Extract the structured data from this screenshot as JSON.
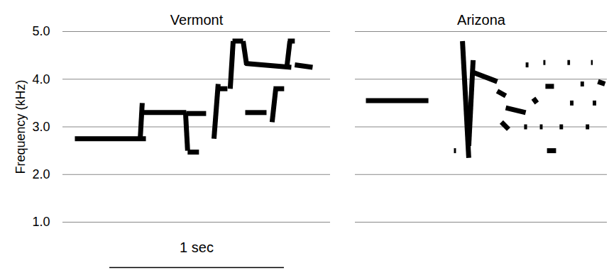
{
  "chart_data": [
    {
      "type": "spectrogram",
      "title": "Vermont",
      "y_label": "Frequency (kHz)",
      "xlim": [
        0,
        1.533
      ],
      "ylim": [
        1,
        5
      ],
      "yticks": [
        1,
        2,
        3,
        4,
        5
      ],
      "grid": true,
      "tick_labels": "y",
      "color": "#000000",
      "scale_bar": {
        "label": "1 sec",
        "length": 1
      },
      "segments": [
        {
          "x": [
            0.069,
            0.476
          ],
          "y": [
            2.75,
            2.75
          ]
        },
        {
          "x": [
            0.443,
            0.455
          ],
          "y": [
            2.72,
            3.5
          ]
        },
        {
          "x": [
            0.455,
            0.707
          ],
          "y": [
            3.3,
            3.3
          ]
        },
        {
          "x": [
            0.707,
            0.821
          ],
          "y": [
            3.28,
            3.28
          ]
        },
        {
          "x": [
            0.703,
            0.715
          ],
          "y": [
            3.3,
            2.5
          ]
        },
        {
          "x": [
            0.715,
            0.78
          ],
          "y": [
            2.47,
            2.47
          ]
        },
        {
          "x": [
            0.866,
            0.89
          ],
          "y": [
            2.75,
            3.9
          ]
        },
        {
          "x": [
            0.882,
            0.943
          ],
          "y": [
            3.8,
            3.8
          ]
        },
        {
          "x": [
            0.959,
            0.976
          ],
          "y": [
            3.8,
            4.8
          ]
        },
        {
          "x": [
            0.972,
            1.033
          ],
          "y": [
            4.8,
            4.8
          ]
        },
        {
          "x": [
            1.033,
            1.053
          ],
          "y": [
            4.8,
            4.3
          ]
        },
        {
          "x": [
            1.045,
            1.309
          ],
          "y": [
            4.33,
            4.25
          ]
        },
        {
          "x": [
            1.045,
            1.167
          ],
          "y": [
            3.3,
            3.3
          ]
        },
        {
          "x": [
            1.199,
            1.22
          ],
          "y": [
            3.1,
            3.8
          ]
        },
        {
          "x": [
            1.207,
            1.268
          ],
          "y": [
            3.8,
            3.8
          ]
        },
        {
          "x": [
            1.285,
            1.301
          ],
          "y": [
            4.3,
            4.8
          ]
        },
        {
          "x": [
            1.289,
            1.329
          ],
          "y": [
            4.8,
            4.8
          ]
        },
        {
          "x": [
            1.329,
            1.431
          ],
          "y": [
            4.3,
            4.25
          ]
        }
      ]
    },
    {
      "type": "spectrogram",
      "title": "Arizona",
      "xlim": [
        0,
        1.443
      ],
      "ylim": [
        1,
        5
      ],
      "yticks": [
        1,
        2,
        3,
        4,
        5
      ],
      "grid": true,
      "tick_labels": false,
      "color": "#000000",
      "segments": [
        {
          "x": [
            0.061,
            0.419
          ],
          "y": [
            3.55,
            3.55
          ]
        },
        {
          "x": [
            0.565,
            0.577
          ],
          "y": [
            2.5,
            2.5
          ]
        },
        {
          "x": [
            0.614,
            0.65
          ],
          "y": [
            4.8,
            2.35
          ]
        },
        {
          "x": [
            0.65,
            0.675
          ],
          "y": [
            2.6,
            4.4
          ]
        },
        {
          "x": [
            0.671,
            0.813
          ],
          "y": [
            4.15,
            3.95
          ]
        },
        {
          "x": [
            0.813,
            0.862
          ],
          "y": [
            3.75,
            3.65
          ]
        },
        {
          "x": [
            0.837,
            0.878
          ],
          "y": [
            3.1,
            2.95
          ]
        },
        {
          "x": [
            0.862,
            0.976
          ],
          "y": [
            3.4,
            3.3
          ]
        },
        {
          "x": [
            0.967,
            0.984
          ],
          "y": [
            3.0,
            3.0
          ]
        },
        {
          "x": [
            0.976,
            0.992
          ],
          "y": [
            4.3,
            4.3
          ]
        },
        {
          "x": [
            1.02,
            1.04
          ],
          "y": [
            3.6,
            3.5
          ]
        },
        {
          "x": [
            1.057,
            1.073
          ],
          "y": [
            3.0,
            3.0
          ]
        },
        {
          "x": [
            1.077,
            1.089
          ],
          "y": [
            4.35,
            4.35
          ]
        },
        {
          "x": [
            1.089,
            1.138
          ],
          "y": [
            3.85,
            3.85
          ]
        },
        {
          "x": [
            1.098,
            1.15
          ],
          "y": [
            2.5,
            2.5
          ]
        },
        {
          "x": [
            1.17,
            1.19
          ],
          "y": [
            3.0,
            3.0
          ]
        },
        {
          "x": [
            1.215,
            1.23
          ],
          "y": [
            4.35,
            4.35
          ]
        },
        {
          "x": [
            1.23,
            1.25
          ],
          "y": [
            3.5,
            3.5
          ]
        },
        {
          "x": [
            1.29,
            1.31
          ],
          "y": [
            3.9,
            3.9
          ]
        },
        {
          "x": [
            1.32,
            1.34
          ],
          "y": [
            3.0,
            3.0
          ]
        },
        {
          "x": [
            1.35,
            1.36
          ],
          "y": [
            4.35,
            4.35
          ]
        },
        {
          "x": [
            1.36,
            1.38
          ],
          "y": [
            3.5,
            3.5
          ]
        },
        {
          "x": [
            1.39,
            1.43
          ],
          "y": [
            3.95,
            3.9
          ]
        }
      ]
    }
  ]
}
